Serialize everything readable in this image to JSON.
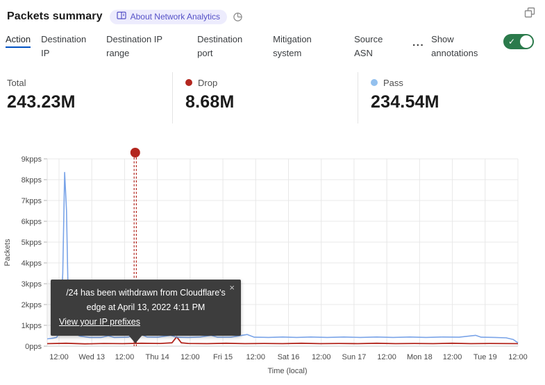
{
  "header": {
    "title": "Packets summary",
    "badge_label": "About Network Analytics",
    "icons": [
      "book-icon",
      "pie-chart-icon",
      "restore-window-icon"
    ]
  },
  "tabs": {
    "items": [
      {
        "label": "Action",
        "active": true
      },
      {
        "label": "Destination IP",
        "active": false
      },
      {
        "label": "Destination IP range",
        "active": false
      },
      {
        "label": "Destination port",
        "active": false
      },
      {
        "label": "Mitigation system",
        "active": false
      },
      {
        "label": "Source ASN",
        "active": false
      }
    ],
    "overflow_label": "...",
    "annotations": {
      "label": "Show annotations",
      "state": "on"
    }
  },
  "stats": [
    {
      "label": "Total",
      "value": "243.23M",
      "dot_color": null
    },
    {
      "label": "Drop",
      "value": "8.68M",
      "dot_color": "#b3271f"
    },
    {
      "label": "Pass",
      "value": "234.54M",
      "dot_color": "#93c0ee"
    }
  ],
  "tooltip": {
    "message": "/24 has been withdrawn from Cloudflare's edge at April 13, 2022 4:11 PM",
    "link_label": "View your IP prefixes",
    "close_label": "×"
  },
  "colors": {
    "accent_blue": "#0051c3",
    "toggle_green": "#2b7a4b",
    "drop_red": "#b3271f",
    "pass_blue": "#7aa4e8",
    "badge_bg": "#edecfd",
    "badge_text": "#5450c7",
    "tooltip_bg": "#3d3d3d",
    "gridline": "#e8e8e8"
  },
  "chart_data": {
    "type": "line",
    "title": "Packets summary over time",
    "xlabel": "Time (local)",
    "ylabel": "Packets",
    "unit": "kpps",
    "ylim": [
      0,
      9
    ],
    "grid": true,
    "y_tick_labels": [
      "0pps",
      "1kpps",
      "2kpps",
      "3kpps",
      "4kpps",
      "5kpps",
      "6kpps",
      "7kpps",
      "8kpps",
      "9kpps"
    ],
    "x_tick_labels": [
      "12:00",
      "Wed 13",
      "12:00",
      "Thu 14",
      "12:00",
      "Fri 15",
      "12:00",
      "Sat 16",
      "12:00",
      "Sun 17",
      "12:00",
      "Mon 18",
      "12:00",
      "Tue 19",
      "12:00"
    ],
    "series": [
      {
        "name": "Pass",
        "color": "#7aa4e8",
        "points": [
          [
            0,
            0.35
          ],
          [
            0.012,
            0.38
          ],
          [
            0.02,
            0.42
          ],
          [
            0.027,
            0.7
          ],
          [
            0.033,
            3.5
          ],
          [
            0.037,
            8.35
          ],
          [
            0.041,
            6.5
          ],
          [
            0.045,
            1.8
          ],
          [
            0.05,
            0.85
          ],
          [
            0.058,
            0.6
          ],
          [
            0.07,
            0.48
          ],
          [
            0.09,
            0.42
          ],
          [
            0.115,
            0.42
          ],
          [
            0.13,
            0.5
          ],
          [
            0.142,
            0.42
          ],
          [
            0.17,
            0.43
          ],
          [
            0.2,
            0.56
          ],
          [
            0.212,
            0.44
          ],
          [
            0.235,
            0.43
          ],
          [
            0.262,
            0.52
          ],
          [
            0.275,
            0.43
          ],
          [
            0.3,
            0.42
          ],
          [
            0.325,
            0.44
          ],
          [
            0.348,
            0.52
          ],
          [
            0.362,
            0.43
          ],
          [
            0.39,
            0.43
          ],
          [
            0.425,
            0.56
          ],
          [
            0.44,
            0.43
          ],
          [
            0.47,
            0.42
          ],
          [
            0.5,
            0.44
          ],
          [
            0.53,
            0.42
          ],
          [
            0.56,
            0.44
          ],
          [
            0.595,
            0.42
          ],
          [
            0.63,
            0.44
          ],
          [
            0.665,
            0.42
          ],
          [
            0.7,
            0.44
          ],
          [
            0.735,
            0.42
          ],
          [
            0.77,
            0.44
          ],
          [
            0.805,
            0.42
          ],
          [
            0.84,
            0.44
          ],
          [
            0.875,
            0.43
          ],
          [
            0.91,
            0.52
          ],
          [
            0.922,
            0.43
          ],
          [
            0.95,
            0.42
          ],
          [
            0.975,
            0.4
          ],
          [
            0.99,
            0.32
          ],
          [
            1,
            0.16
          ]
        ]
      },
      {
        "name": "Drop",
        "color": "#b3271f",
        "points": [
          [
            0,
            0.12
          ],
          [
            0.04,
            0.14
          ],
          [
            0.08,
            0.11
          ],
          [
            0.12,
            0.13
          ],
          [
            0.16,
            0.12
          ],
          [
            0.2,
            0.14
          ],
          [
            0.24,
            0.13
          ],
          [
            0.265,
            0.16
          ],
          [
            0.275,
            0.45
          ],
          [
            0.285,
            0.16
          ],
          [
            0.3,
            0.13
          ],
          [
            0.34,
            0.12
          ],
          [
            0.38,
            0.14
          ],
          [
            0.42,
            0.12
          ],
          [
            0.46,
            0.13
          ],
          [
            0.5,
            0.12
          ],
          [
            0.54,
            0.14
          ],
          [
            0.58,
            0.12
          ],
          [
            0.62,
            0.13
          ],
          [
            0.66,
            0.12
          ],
          [
            0.7,
            0.14
          ],
          [
            0.74,
            0.12
          ],
          [
            0.78,
            0.13
          ],
          [
            0.82,
            0.12
          ],
          [
            0.86,
            0.14
          ],
          [
            0.9,
            0.12
          ],
          [
            0.94,
            0.13
          ],
          [
            1,
            0.12
          ]
        ]
      }
    ],
    "annotation": {
      "x_fraction": 0.187,
      "style": "double-dashed-vertical-with-dot",
      "color": "#b3271f",
      "label": "/24 has been withdrawn from Cloudflare's edge at April 13, 2022 4:11 PM"
    }
  }
}
